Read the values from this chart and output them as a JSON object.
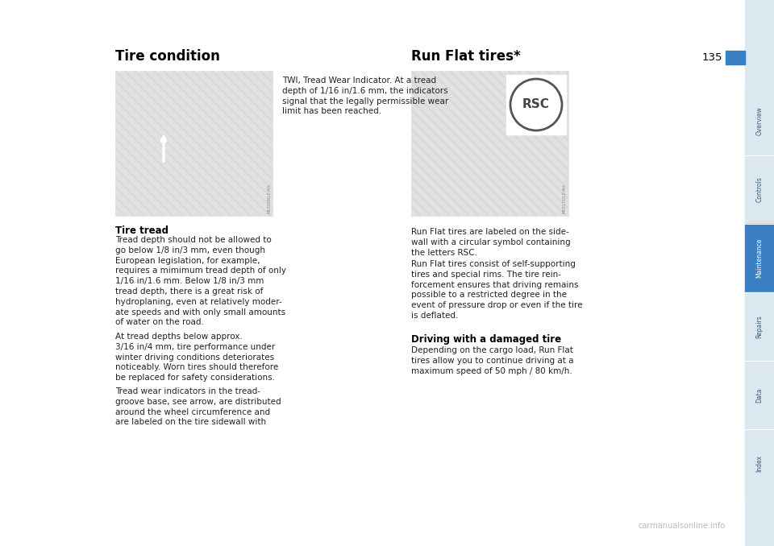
{
  "page_bg": "#ffffff",
  "page_number": "135",
  "left_heading": "Tire condition",
  "right_heading": "Run Flat tires*",
  "nav_labels": [
    "Overview",
    "Controls",
    "Maintenance",
    "Repairs",
    "Data",
    "Index"
  ],
  "nav_active": "Maintenance",
  "nav_active_color": "#3a7fc1",
  "nav_inactive_color": "#dce8f0",
  "nav_separator_color": "#ffffff",
  "nav_text_color_active": "#ffffff",
  "nav_text_color_inactive": "#3a5a7a",
  "page_num_box_color": "#3a7fc1",
  "heading_color": "#000000",
  "subheading_color": "#000000",
  "body_text_color": "#222222",
  "watermark_text": "carmanualsonline.info",
  "watermark_color": "#bbbbbb",
  "left_subheading": "Tire tread",
  "left_body_para1": "Tread depth should not be allowed to\ngo below 1/8 in/3 mm, even though\nEuropean legislation, for example,\nrequires a mimimum tread depth of only\n1/16 in/1.6 mm. Below 1/8 in/3 mm\ntread depth, there is a great risk of\nhydroplaning, even at relatively moder-\nate speeds and with only small amounts\nof water on the road.",
  "left_body_para2": "At tread depths below approx.\n3/16 in/4 mm, tire performance under\nwinter driving conditions deteriorates\nnoticeably. Worn tires should therefore\nbe replaced for safety considerations.",
  "left_body_para3": "Tread wear indicators in the tread-\ngroove base, see arrow, are distributed\naround the wheel circumference and\nare labeled on the tire sidewall with",
  "right_caption": "TWI, Tread Wear Indicator. At a tread\ndepth of 1/16 in/1.6 mm, the indicators\nsignal that the legally permissible wear\nlimit has been reached.",
  "right_subheading": "Driving with a damaged tire",
  "right_body_para1": "Run Flat tires are labeled on the side-\nwall with a circular symbol containing\nthe letters RSC.",
  "right_body_para2": "Run Flat tires consist of self-supporting\ntires and special rims. The tire rein-\nforcement ensures that driving remains\npossible to a restricted degree in the\nevent of pressure drop or even if the tire\nis deflated.",
  "right_body_para3": "Depending on the cargo load, Run Flat\ntires allow you to continue driving at a\nmaximum speed of 50 mph / 80 km/h.",
  "img_left_watermark": "MK01090.0.MA",
  "img_right_watermark": "MK01310.0.MA"
}
